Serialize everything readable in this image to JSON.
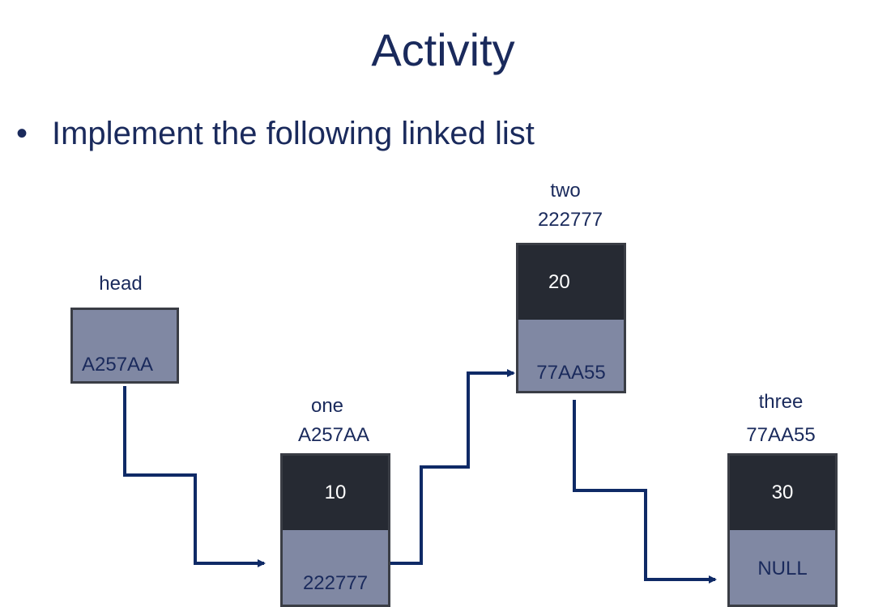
{
  "slide": {
    "title": "Activity",
    "bullet": "Implement the following linked list"
  },
  "head": {
    "name": "head",
    "value": "A257AA"
  },
  "nodes": {
    "one": {
      "name": "one",
      "address": "A257AA",
      "data": "10",
      "next": "222777"
    },
    "two": {
      "name": "two",
      "address": "222777",
      "data": "20",
      "next": "77AA55"
    },
    "three": {
      "name": "three",
      "address": "77AA55",
      "data": "30",
      "next": "NULL"
    }
  },
  "colors": {
    "text": "#1a2a5c",
    "data_cell": "#262a33",
    "pointer_cell": "#8088a3",
    "arrow": "#0f2a66"
  }
}
